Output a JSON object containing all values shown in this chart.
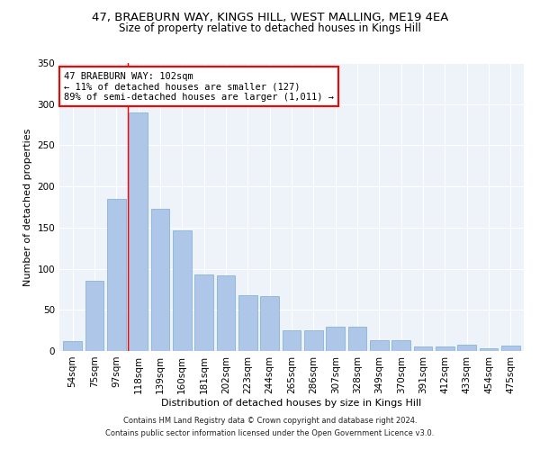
{
  "title1": "47, BRAEBURN WAY, KINGS HILL, WEST MALLING, ME19 4EA",
  "title2": "Size of property relative to detached houses in Kings Hill",
  "xlabel": "Distribution of detached houses by size in Kings Hill",
  "ylabel": "Number of detached properties",
  "categories": [
    "54sqm",
    "75sqm",
    "97sqm",
    "118sqm",
    "139sqm",
    "160sqm",
    "181sqm",
    "202sqm",
    "223sqm",
    "244sqm",
    "265sqm",
    "286sqm",
    "307sqm",
    "328sqm",
    "349sqm",
    "370sqm",
    "391sqm",
    "412sqm",
    "433sqm",
    "454sqm",
    "475sqm"
  ],
  "values": [
    12,
    85,
    185,
    290,
    173,
    147,
    93,
    92,
    68,
    67,
    25,
    25,
    30,
    30,
    13,
    13,
    5,
    6,
    8,
    3,
    7
  ],
  "bar_color": "#aec6e8",
  "bar_edgecolor": "#8ab4d8",
  "annotation_text": "47 BRAEBURN WAY: 102sqm\n← 11% of detached houses are smaller (127)\n89% of semi-detached houses are larger (1,011) →",
  "annotation_box_color": "white",
  "annotation_box_edgecolor": "red",
  "red_line_x": 2.52,
  "footnote1": "Contains HM Land Registry data © Crown copyright and database right 2024.",
  "footnote2": "Contains public sector information licensed under the Open Government Licence v3.0.",
  "background_color": "#eef2f9",
  "ylim": [
    0,
    350
  ],
  "yticks": [
    0,
    50,
    100,
    150,
    200,
    250,
    300,
    350
  ],
  "title1_fontsize": 9.5,
  "title2_fontsize": 8.5,
  "xlabel_fontsize": 8,
  "ylabel_fontsize": 8,
  "tick_fontsize": 7.5,
  "annot_fontsize": 7.5,
  "footnote_fontsize": 6
}
